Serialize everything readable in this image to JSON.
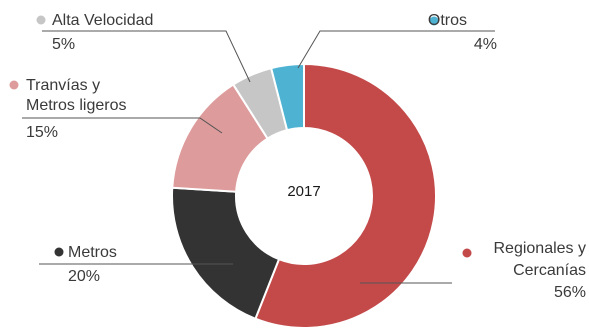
{
  "chart_data": {
    "type": "pie",
    "center_label": "2017",
    "slices": [
      {
        "name": "Regionales y Cercanías",
        "name_lines": [
          "Regionales y",
          "Cercanías"
        ],
        "value": 56,
        "value_label": "56%",
        "color": "#c44a4a"
      },
      {
        "name": "Metros",
        "name_lines": [
          "Metros"
        ],
        "value": 20,
        "value_label": "20%",
        "color": "#333333"
      },
      {
        "name": "Tranvías y Metros ligeros",
        "name_lines": [
          "Tranvías y",
          "Metros ligeros"
        ],
        "value": 15,
        "value_label": "15%",
        "color": "#de9b9b"
      },
      {
        "name": "Alta Velocidad",
        "name_lines": [
          "Alta Velocidad"
        ],
        "value": 5,
        "value_label": "5%",
        "color": "#c6c6c6"
      },
      {
        "name": "Otros",
        "name_lines": [
          "Otros"
        ],
        "value": 4,
        "value_label": "4%",
        "color": "#4eb3d3"
      }
    ]
  }
}
